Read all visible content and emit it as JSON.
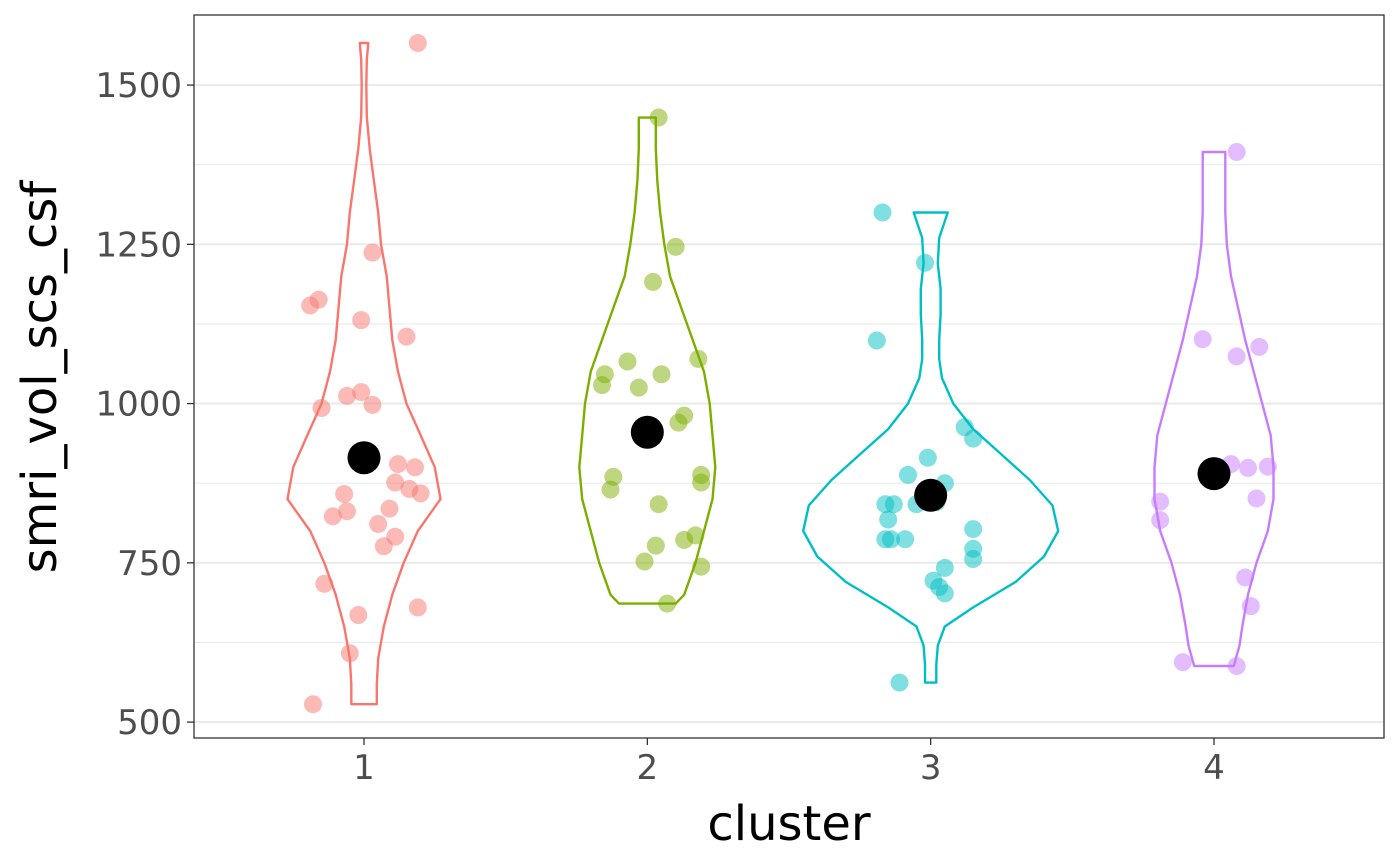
{
  "chart_data": {
    "type": "violin",
    "xlabel": "cluster",
    "ylabel": "smri_vol_scs_csf",
    "categories": [
      "1",
      "2",
      "3",
      "4"
    ],
    "y_ticks": [
      500,
      750,
      1000,
      1250,
      1500
    ],
    "ylim": [
      475,
      1610
    ],
    "xlim": [
      0.4,
      4.6
    ],
    "grid": true,
    "colors": {
      "1": "#F8766D",
      "2": "#7CAE00",
      "3": "#00BFC4",
      "4": "#C77CFF"
    },
    "mean_color": "#000000",
    "groups": [
      {
        "cluster": "1",
        "mean": 915,
        "points": [
          {
            "x": 0.82,
            "y": 528
          },
          {
            "x": 0.95,
            "y": 608
          },
          {
            "x": 0.98,
            "y": 668
          },
          {
            "x": 1.19,
            "y": 680
          },
          {
            "x": 0.86,
            "y": 717
          },
          {
            "x": 1.07,
            "y": 776
          },
          {
            "x": 1.11,
            "y": 791
          },
          {
            "x": 1.05,
            "y": 811
          },
          {
            "x": 0.89,
            "y": 823
          },
          {
            "x": 0.94,
            "y": 831
          },
          {
            "x": 1.09,
            "y": 835
          },
          {
            "x": 0.93,
            "y": 858
          },
          {
            "x": 1.2,
            "y": 859
          },
          {
            "x": 1.16,
            "y": 866
          },
          {
            "x": 1.11,
            "y": 876
          },
          {
            "x": 1.18,
            "y": 900
          },
          {
            "x": 1.12,
            "y": 905
          },
          {
            "x": 0.85,
            "y": 993
          },
          {
            "x": 1.03,
            "y": 998
          },
          {
            "x": 0.94,
            "y": 1012
          },
          {
            "x": 0.99,
            "y": 1018
          },
          {
            "x": 1.15,
            "y": 1105
          },
          {
            "x": 0.99,
            "y": 1131
          },
          {
            "x": 0.81,
            "y": 1154
          },
          {
            "x": 0.84,
            "y": 1163
          },
          {
            "x": 1.03,
            "y": 1237
          },
          {
            "x": 1.19,
            "y": 1566
          }
        ],
        "violin": [
          [
            528,
            0.045
          ],
          [
            560,
            0.045
          ],
          [
            600,
            0.05
          ],
          [
            650,
            0.07
          ],
          [
            700,
            0.1
          ],
          [
            750,
            0.14
          ],
          [
            800,
            0.19
          ],
          [
            850,
            0.27
          ],
          [
            900,
            0.25
          ],
          [
            950,
            0.2
          ],
          [
            1000,
            0.15
          ],
          [
            1050,
            0.12
          ],
          [
            1100,
            0.1
          ],
          [
            1150,
            0.09
          ],
          [
            1200,
            0.08
          ],
          [
            1250,
            0.06
          ],
          [
            1300,
            0.05
          ],
          [
            1350,
            0.035
          ],
          [
            1400,
            0.02
          ],
          [
            1450,
            0.01
          ],
          [
            1500,
            0.008
          ],
          [
            1540,
            0.01
          ],
          [
            1566,
            0.015
          ]
        ]
      },
      {
        "cluster": "2",
        "mean": 955,
        "points": [
          {
            "x": 2.07,
            "y": 686
          },
          {
            "x": 2.19,
            "y": 744
          },
          {
            "x": 1.99,
            "y": 752
          },
          {
            "x": 2.03,
            "y": 777
          },
          {
            "x": 2.13,
            "y": 786
          },
          {
            "x": 2.17,
            "y": 793
          },
          {
            "x": 2.04,
            "y": 842
          },
          {
            "x": 1.87,
            "y": 865
          },
          {
            "x": 2.19,
            "y": 876
          },
          {
            "x": 1.88,
            "y": 885
          },
          {
            "x": 2.19,
            "y": 888
          },
          {
            "x": 2.11,
            "y": 970
          },
          {
            "x": 2.13,
            "y": 981
          },
          {
            "x": 1.84,
            "y": 1029
          },
          {
            "x": 1.97,
            "y": 1025
          },
          {
            "x": 1.85,
            "y": 1046
          },
          {
            "x": 2.05,
            "y": 1046
          },
          {
            "x": 1.93,
            "y": 1066
          },
          {
            "x": 2.18,
            "y": 1070
          },
          {
            "x": 2.02,
            "y": 1191
          },
          {
            "x": 2.1,
            "y": 1246
          },
          {
            "x": 2.04,
            "y": 1449
          }
        ],
        "violin": [
          [
            686,
            0.1
          ],
          [
            700,
            0.13
          ],
          [
            750,
            0.17
          ],
          [
            800,
            0.2
          ],
          [
            850,
            0.23
          ],
          [
            900,
            0.24
          ],
          [
            950,
            0.23
          ],
          [
            1000,
            0.22
          ],
          [
            1050,
            0.2
          ],
          [
            1100,
            0.16
          ],
          [
            1150,
            0.12
          ],
          [
            1200,
            0.08
          ],
          [
            1250,
            0.06
          ],
          [
            1300,
            0.045
          ],
          [
            1350,
            0.035
          ],
          [
            1400,
            0.03
          ],
          [
            1449,
            0.03
          ]
        ]
      },
      {
        "cluster": "3",
        "mean": 856,
        "points": [
          {
            "x": 2.89,
            "y": 562
          },
          {
            "x": 3.05,
            "y": 702
          },
          {
            "x": 3.03,
            "y": 712
          },
          {
            "x": 3.01,
            "y": 722
          },
          {
            "x": 3.05,
            "y": 742
          },
          {
            "x": 3.15,
            "y": 756
          },
          {
            "x": 3.15,
            "y": 772
          },
          {
            "x": 2.84,
            "y": 787
          },
          {
            "x": 2.86,
            "y": 787
          },
          {
            "x": 2.91,
            "y": 787
          },
          {
            "x": 3.15,
            "y": 803
          },
          {
            "x": 2.85,
            "y": 818
          },
          {
            "x": 2.84,
            "y": 842
          },
          {
            "x": 2.87,
            "y": 842
          },
          {
            "x": 2.95,
            "y": 842
          },
          {
            "x": 3.02,
            "y": 845
          },
          {
            "x": 3.05,
            "y": 875
          },
          {
            "x": 2.92,
            "y": 888
          },
          {
            "x": 2.99,
            "y": 915
          },
          {
            "x": 3.15,
            "y": 945
          },
          {
            "x": 3.12,
            "y": 963
          },
          {
            "x": 2.81,
            "y": 1099
          },
          {
            "x": 2.98,
            "y": 1221
          },
          {
            "x": 2.83,
            "y": 1300
          }
        ],
        "violin": [
          [
            562,
            0.02
          ],
          [
            590,
            0.02
          ],
          [
            620,
            0.025
          ],
          [
            650,
            0.05
          ],
          [
            680,
            0.15
          ],
          [
            720,
            0.3
          ],
          [
            760,
            0.4
          ],
          [
            800,
            0.45
          ],
          [
            840,
            0.43
          ],
          [
            880,
            0.35
          ],
          [
            920,
            0.25
          ],
          [
            960,
            0.15
          ],
          [
            1000,
            0.08
          ],
          [
            1040,
            0.04
          ],
          [
            1070,
            0.03
          ],
          [
            1100,
            0.03
          ],
          [
            1140,
            0.035
          ],
          [
            1180,
            0.035
          ],
          [
            1220,
            0.025
          ],
          [
            1260,
            0.03
          ],
          [
            1300,
            0.06
          ]
        ]
      },
      {
        "cluster": "4",
        "mean": 890,
        "points": [
          {
            "x": 4.08,
            "y": 588
          },
          {
            "x": 3.89,
            "y": 594
          },
          {
            "x": 4.13,
            "y": 682
          },
          {
            "x": 4.11,
            "y": 727
          },
          {
            "x": 3.81,
            "y": 817
          },
          {
            "x": 3.81,
            "y": 846
          },
          {
            "x": 4.15,
            "y": 851
          },
          {
            "x": 4.12,
            "y": 899
          },
          {
            "x": 4.19,
            "y": 901
          },
          {
            "x": 4.06,
            "y": 905
          },
          {
            "x": 4.08,
            "y": 1074
          },
          {
            "x": 4.16,
            "y": 1089
          },
          {
            "x": 3.96,
            "y": 1101
          },
          {
            "x": 4.08,
            "y": 1395
          }
        ],
        "violin": [
          [
            588,
            0.07
          ],
          [
            620,
            0.09
          ],
          [
            650,
            0.1
          ],
          [
            700,
            0.12
          ],
          [
            750,
            0.15
          ],
          [
            800,
            0.19
          ],
          [
            850,
            0.21
          ],
          [
            900,
            0.21
          ],
          [
            950,
            0.2
          ],
          [
            1000,
            0.17
          ],
          [
            1050,
            0.14
          ],
          [
            1100,
            0.11
          ],
          [
            1150,
            0.085
          ],
          [
            1200,
            0.06
          ],
          [
            1250,
            0.045
          ],
          [
            1300,
            0.04
          ],
          [
            1350,
            0.04
          ],
          [
            1395,
            0.04
          ]
        ]
      }
    ]
  }
}
